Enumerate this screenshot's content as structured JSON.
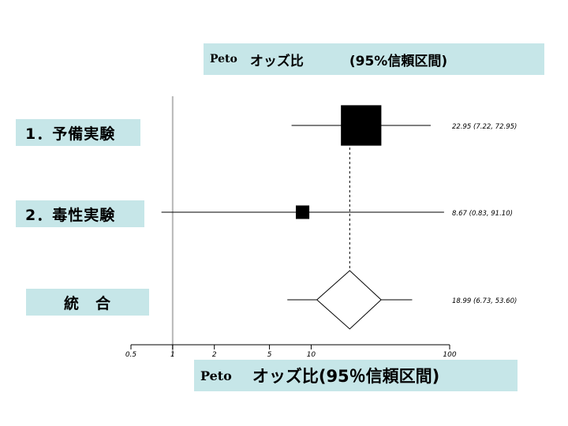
{
  "header": {
    "method": "Peto",
    "measure": "オッズ比",
    "ci_label": "(95%信頼区間)"
  },
  "rows": [
    {
      "label": "1．予備実験"
    },
    {
      "label": "2．毒性実験"
    },
    {
      "label": "統　合"
    }
  ],
  "axis_label": {
    "method": "Peto",
    "text": "オッズ比(95％信頼区間)"
  },
  "chart_data": {
    "type": "forest",
    "scale": "log",
    "xlim": [
      0.5,
      100
    ],
    "reference_line": 1,
    "x_ticks": [
      {
        "value": 0.5,
        "label": "0.5"
      },
      {
        "value": 1,
        "label": "1"
      },
      {
        "value": 2,
        "label": "2"
      },
      {
        "value": 5,
        "label": "5"
      },
      {
        "value": 10,
        "label": "10"
      },
      {
        "value": 100,
        "label": "100"
      }
    ],
    "studies": [
      {
        "or": 22.95,
        "lo": 7.22,
        "hi": 72.95,
        "text": "22.95 (7.22, 72.95)",
        "weight": 0.9
      },
      {
        "or": 8.67,
        "lo": 0.83,
        "hi": 91.1,
        "text": "8.67 (0.83, 91.10)",
        "weight": 0.1
      }
    ],
    "pooled": {
      "or": 18.99,
      "lo": 6.73,
      "hi": 53.6,
      "text": "18.99 (6.73, 53.60)",
      "diamond_lo": 11,
      "diamond_hi": 32
    }
  }
}
